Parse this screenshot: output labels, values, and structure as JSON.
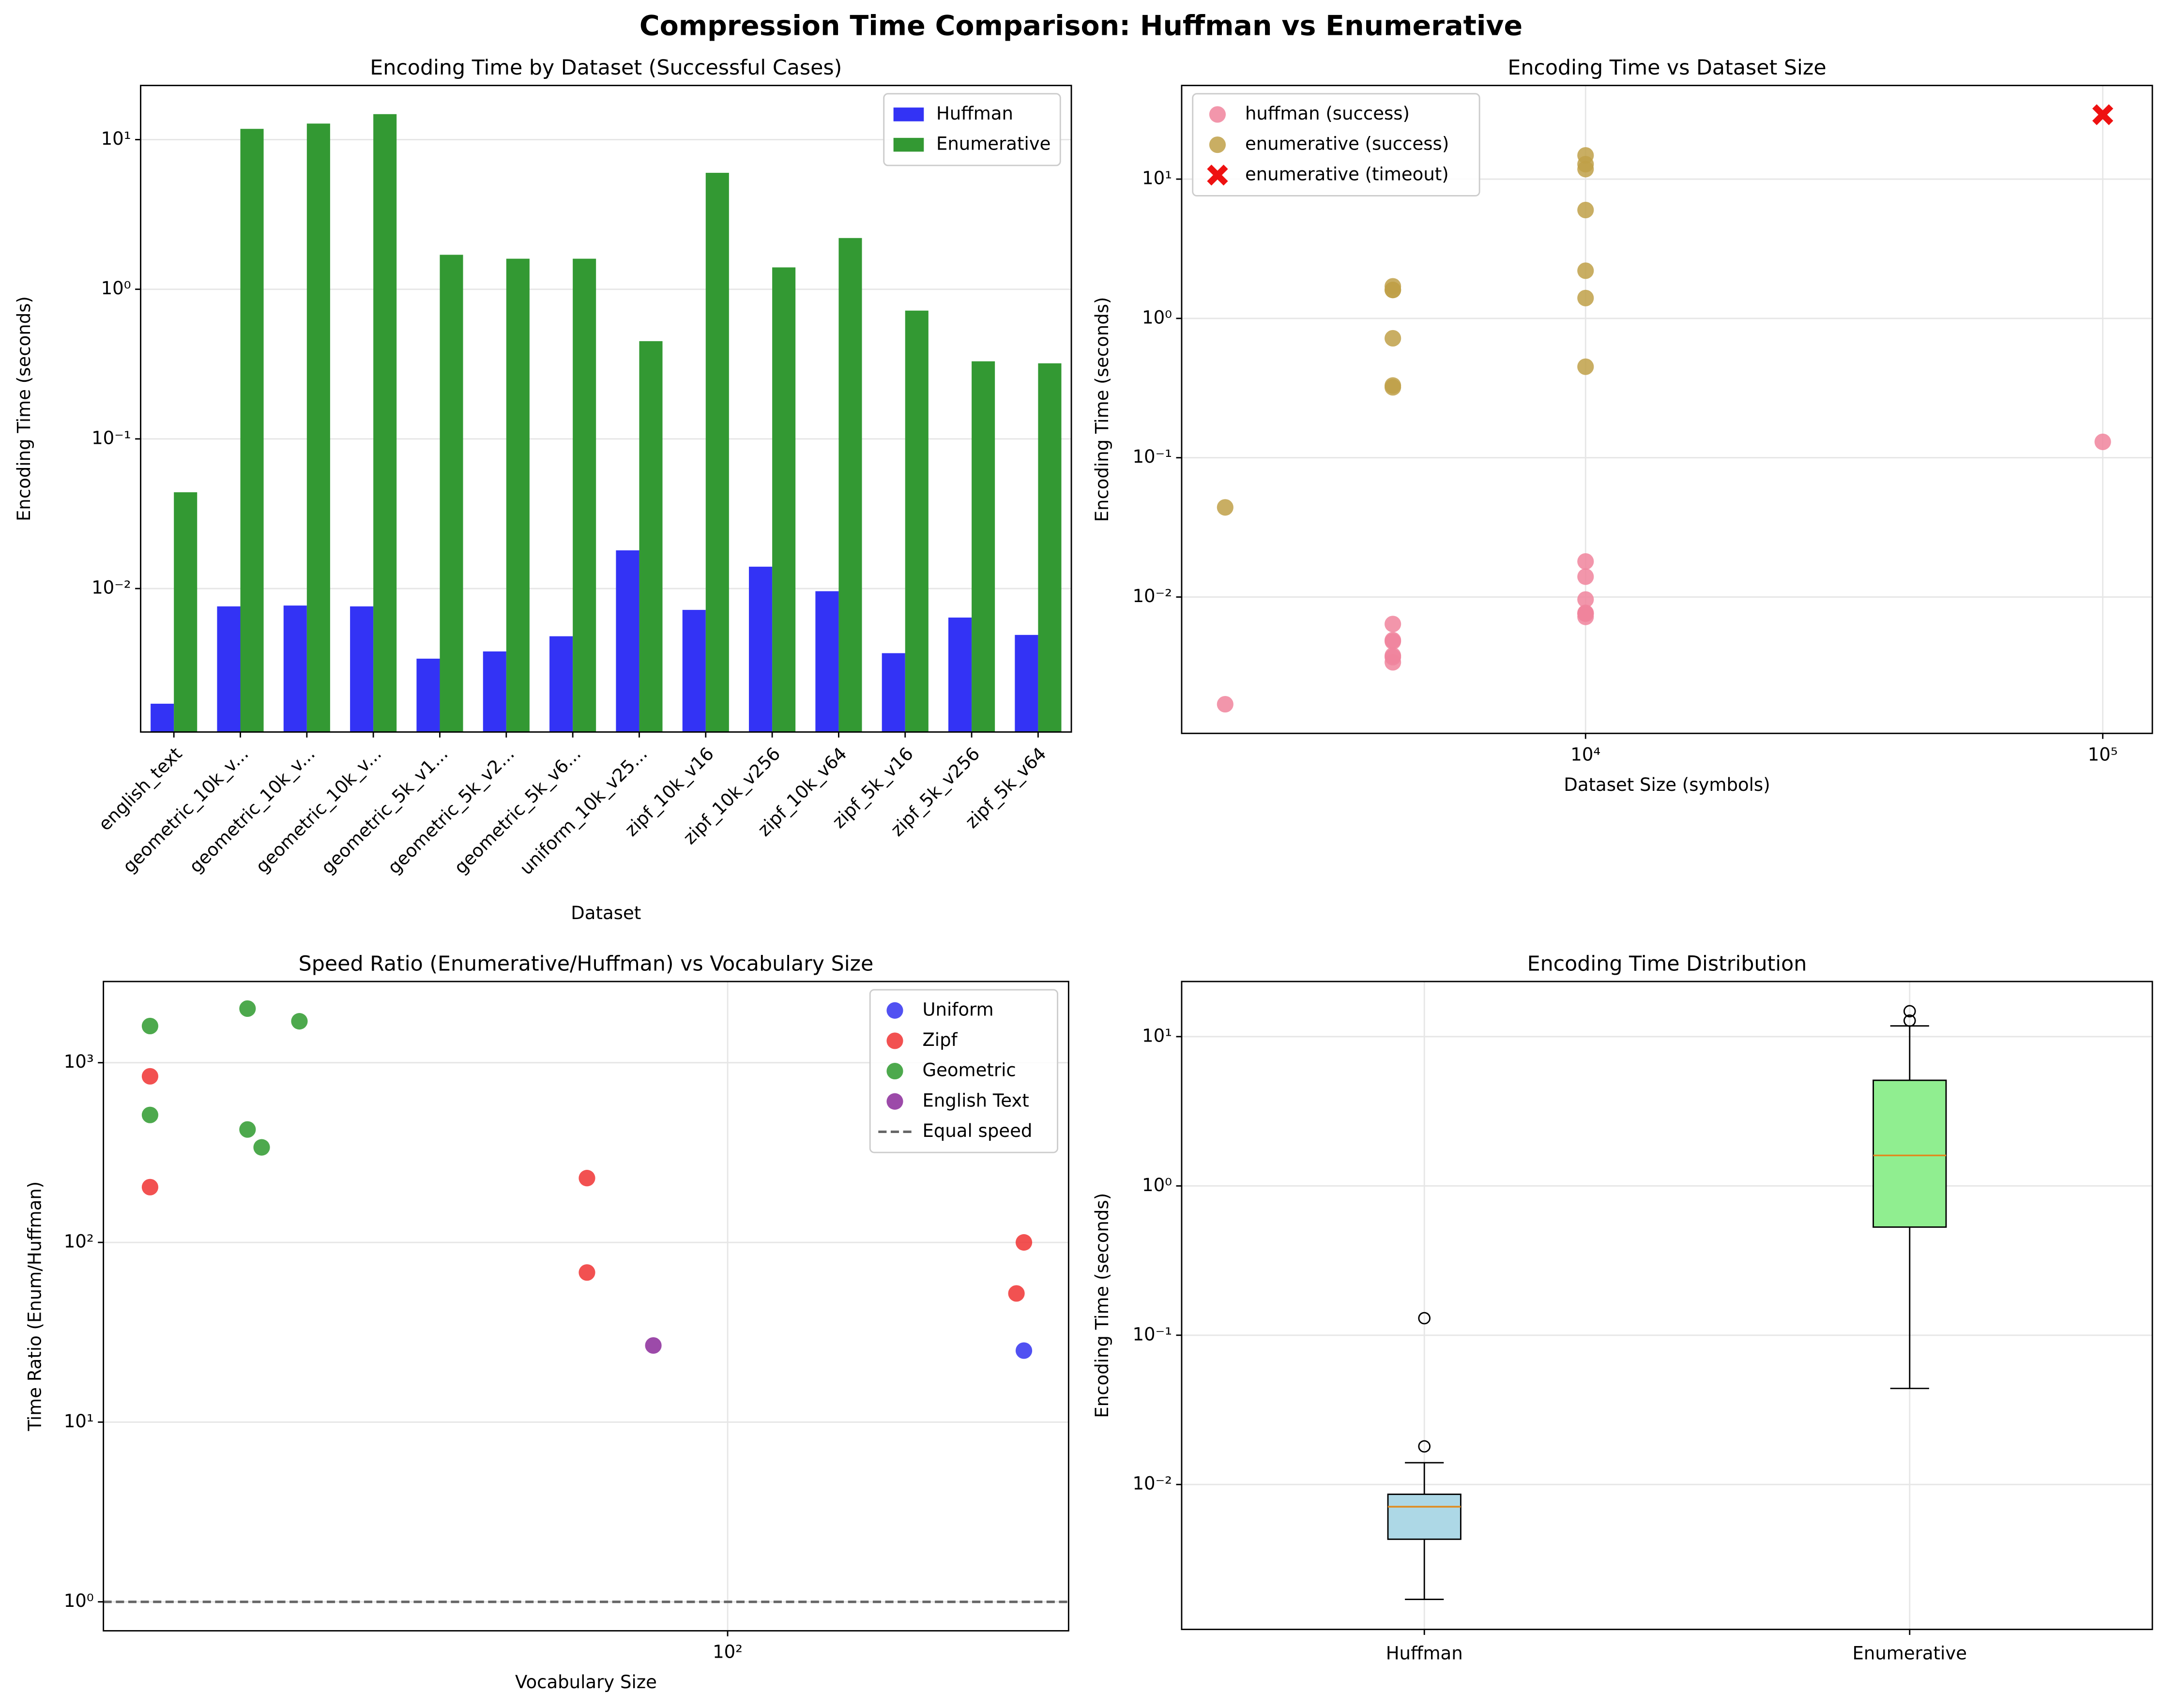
{
  "title": "Compression Time Comparison: Huffman vs Enumerative",
  "chart_data": [
    {
      "type": "bar",
      "title": "Encoding Time by Dataset (Successful Cases)",
      "xlabel": "Dataset",
      "ylabel": "Encoding Time (seconds)",
      "categories": [
        "english_text",
        "geometric_10k_v...",
        "geometric_10k_v...",
        "geometric_10k_v...",
        "geometric_5k_v1...",
        "geometric_5k_v2...",
        "geometric_5k_v6...",
        "uniform_10k_v25...",
        "zipf_10k_v16",
        "zipf_10k_v256",
        "zipf_10k_v64",
        "zipf_5k_v16",
        "zipf_5k_v256",
        "zipf_5k_v64"
      ],
      "series": [
        {
          "name": "Huffman",
          "color": "#3333f5",
          "values": [
            0.0017,
            0.0076,
            0.0077,
            0.0076,
            0.0034,
            0.0038,
            0.0048,
            0.018,
            0.0072,
            0.014,
            0.0096,
            0.0037,
            0.0064,
            0.0049
          ]
        },
        {
          "name": "Enumerative",
          "color": "#339933",
          "values": [
            0.044,
            11.8,
            12.8,
            14.8,
            1.7,
            1.6,
            1.6,
            0.45,
            6.0,
            1.4,
            2.2,
            0.72,
            0.33,
            0.32
          ]
        }
      ],
      "yscale": "log",
      "ylim": [
        0.0011,
        23
      ],
      "yticks": [
        {
          "value": 0.01,
          "label": "10⁻²"
        },
        {
          "value": 0.1,
          "label": "10⁻¹"
        },
        {
          "value": 1,
          "label": "10⁰"
        },
        {
          "value": 10,
          "label": "10¹"
        }
      ],
      "grid": true,
      "legend": "upper right"
    },
    {
      "type": "scatter",
      "title": "Encoding Time vs Dataset Size",
      "xlabel": "Dataset Size (symbols)",
      "ylabel": "Encoding Time (seconds)",
      "series": [
        {
          "name": "huffman (success)",
          "color": "#f0849c",
          "marker": "o",
          "x": [
            2010,
            4240,
            4240,
            4240,
            4240,
            4240,
            4240,
            10000,
            10000,
            10000,
            10000,
            10000,
            10000,
            10000,
            100000
          ],
          "values": [
            0.0017,
            0.0034,
            0.0038,
            0.0048,
            0.0037,
            0.0064,
            0.0049,
            0.0076,
            0.0077,
            0.0076,
            0.018,
            0.0072,
            0.014,
            0.0096,
            0.13
          ]
        },
        {
          "name": "enumerative (success)",
          "color": "#c0a048",
          "marker": "o",
          "x": [
            2010,
            4240,
            4240,
            4240,
            4240,
            4240,
            4240,
            10000,
            10000,
            10000,
            10000,
            10000,
            10000,
            10000
          ],
          "values": [
            0.044,
            1.7,
            1.6,
            1.6,
            0.72,
            0.33,
            0.32,
            11.8,
            12.8,
            14.8,
            0.45,
            6.0,
            1.4,
            2.2
          ]
        },
        {
          "name": "enumerative (timeout)",
          "color": "#ee1111",
          "marker": "X",
          "x": [
            100000
          ],
          "values": [
            29
          ]
        }
      ],
      "xscale": "log",
      "xlim": [
        1656,
        124700
      ],
      "xticks": [
        {
          "value": 10000,
          "label": "10⁴"
        },
        {
          "value": 100000,
          "label": "10⁵"
        }
      ],
      "yscale": "log",
      "ylim": [
        0.00105,
        47
      ],
      "yticks": [
        {
          "value": 0.01,
          "label": "10⁻²"
        },
        {
          "value": 0.1,
          "label": "10⁻¹"
        },
        {
          "value": 1,
          "label": "10⁰"
        },
        {
          "value": 10,
          "label": "10¹"
        }
      ],
      "grid": true,
      "legend": "upper left"
    },
    {
      "type": "scatter",
      "title": "Speed Ratio (Enumerative/Huffman) vs Vocabulary Size",
      "xlabel": "Vocabulary Size",
      "ylabel": "Time Ratio (Enum/Huffman)",
      "series": [
        {
          "name": "Uniform",
          "color": "#3333f0",
          "marker": "o",
          "x": [
            256
          ],
          "values": [
            25
          ]
        },
        {
          "name": "Zipf",
          "color": "#f03333",
          "marker": "o",
          "x": [
            16,
            16,
            64,
            64,
            256,
            250
          ],
          "values": [
            840,
            203,
            228,
            68,
            100,
            52
          ]
        },
        {
          "name": "Geometric",
          "color": "#2e9a2e",
          "marker": "o",
          "x": [
            16,
            16,
            21.8,
            21.8,
            22.8,
            25.7
          ],
          "values": [
            1600,
            512,
            2000,
            425,
            338,
            1700
          ]
        },
        {
          "name": "English Text",
          "color": "#8b2a9a",
          "marker": "o",
          "x": [
            79
          ],
          "values": [
            26.7
          ]
        }
      ],
      "hlines": [
        {
          "name": "Equal speed",
          "y": 1,
          "color": "#666666"
        }
      ],
      "xscale": "log",
      "xlim": [
        13.8,
        295
      ],
      "xticks": [
        {
          "value": 100,
          "label": "10²"
        }
      ],
      "yscale": "log",
      "ylim": [
        0.69,
        2830
      ],
      "yticks": [
        {
          "value": 1,
          "label": "10⁰"
        },
        {
          "value": 10,
          "label": "10¹"
        },
        {
          "value": 100,
          "label": "10²"
        },
        {
          "value": 1000,
          "label": "10³"
        }
      ],
      "grid": true,
      "legend": "upper right"
    },
    {
      "type": "box",
      "title": "Encoding Time Distribution",
      "ylabel": "Encoding Time (seconds)",
      "categories": [
        "Huffman",
        "Enumerative"
      ],
      "colors": [
        "#add8e6",
        "#90ee90"
      ],
      "boxes": [
        {
          "whislo": 0.0017,
          "q1": 0.0043,
          "med": 0.0071,
          "q3": 0.0086,
          "whishi": 0.014,
          "fliers": [
            0.018,
            0.13
          ]
        },
        {
          "whislo": 0.044,
          "q1": 0.53,
          "med": 1.6,
          "q3": 5.1,
          "whishi": 11.8,
          "fliers": [
            12.8,
            14.8
          ]
        }
      ],
      "yscale": "log",
      "ylim": [
        0.00107,
        23.4
      ],
      "yticks": [
        {
          "value": 0.01,
          "label": "10⁻²"
        },
        {
          "value": 0.1,
          "label": "10⁻¹"
        },
        {
          "value": 1,
          "label": "10⁰"
        },
        {
          "value": 10,
          "label": "10¹"
        }
      ],
      "grid": true
    }
  ]
}
